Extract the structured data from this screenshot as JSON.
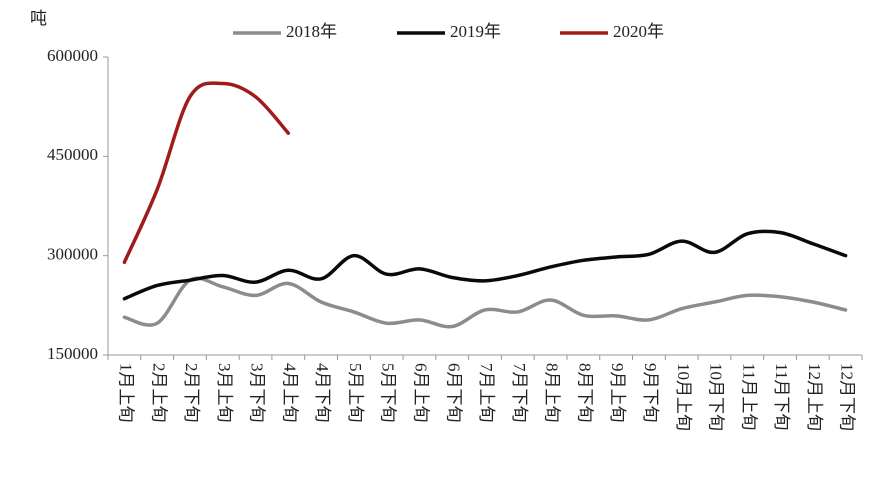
{
  "chart_data": {
    "type": "line",
    "y_label": "吨",
    "categories": [
      "1月上旬",
      "2月上旬",
      "2月下旬",
      "3月上旬",
      "3月下旬",
      "4月上旬",
      "4月下旬",
      "5月上旬",
      "5月下旬",
      "6月上旬",
      "6月下旬",
      "7月上旬",
      "7月下旬",
      "8月上旬",
      "8月下旬",
      "9月上旬",
      "9月下旬",
      "10月上旬",
      "10月下旬",
      "11月上旬",
      "11月下旬",
      "12月上旬",
      "12月下旬"
    ],
    "series": [
      {
        "name": "2018年",
        "color": "#8c8c8c",
        "values": [
          207000,
          198000,
          263000,
          253000,
          240000,
          258000,
          230000,
          215000,
          198000,
          203000,
          193000,
          218000,
          215000,
          233000,
          210000,
          209000,
          203000,
          220000,
          230000,
          240000,
          238000,
          230000,
          218000
        ]
      },
      {
        "name": "2019年",
        "color": "#0a0a0a",
        "values": [
          235000,
          255000,
          263000,
          270000,
          260000,
          278000,
          265000,
          300000,
          272000,
          280000,
          267000,
          262000,
          270000,
          283000,
          293000,
          298000,
          302000,
          322000,
          305000,
          333000,
          335000,
          318000,
          300000
        ]
      },
      {
        "name": "2020年",
        "color": "#a01c1c",
        "values": [
          290000,
          400000,
          540000,
          560000,
          540000,
          485000,
          null,
          null,
          null,
          null,
          null,
          null,
          null,
          null,
          null,
          null,
          null,
          null,
          null,
          null,
          null,
          null,
          null
        ]
      }
    ],
    "ylim": [
      150000,
      600000
    ],
    "yticks": [
      150000,
      300000,
      450000,
      600000
    ],
    "legend": "top"
  }
}
